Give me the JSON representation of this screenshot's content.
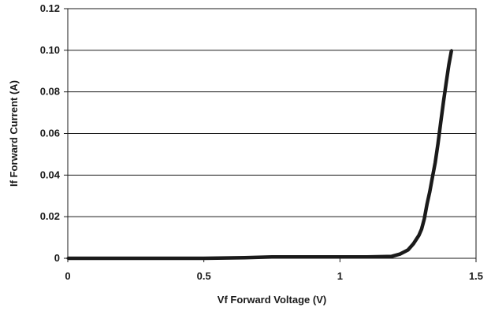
{
  "chart_data": {
    "type": "line",
    "title": "",
    "xlabel": "Vf Forward Voltage (V)",
    "ylabel": "If Forward Current (A)",
    "xlim": [
      0,
      1.5
    ],
    "ylim": [
      0,
      0.12
    ],
    "x_ticks": [
      "0",
      "0.5",
      "1",
      "1.5"
    ],
    "y_ticks": [
      "0",
      "0.02",
      "0.04",
      "0.06",
      "0.08",
      "0.10",
      "0.12"
    ],
    "grid": "horizontal",
    "legend": "none",
    "line_color": "#1a1a1a",
    "series": [
      {
        "x": [
          0,
          0.5,
          0.65,
          0.75,
          0.9,
          1.0,
          1.1,
          1.19,
          1.22,
          1.25,
          1.27,
          1.29,
          1.3,
          1.31,
          1.32,
          1.33,
          1.34,
          1.35,
          1.36,
          1.37,
          1.38,
          1.39,
          1.4,
          1.41
        ],
        "y": [
          0,
          0,
          0.0003,
          0.0007,
          0.0007,
          0.0007,
          0.0007,
          0.0009,
          0.002,
          0.004,
          0.007,
          0.011,
          0.014,
          0.019,
          0.026,
          0.032,
          0.039,
          0.046,
          0.055,
          0.065,
          0.075,
          0.084,
          0.093,
          0.1
        ]
      }
    ]
  }
}
